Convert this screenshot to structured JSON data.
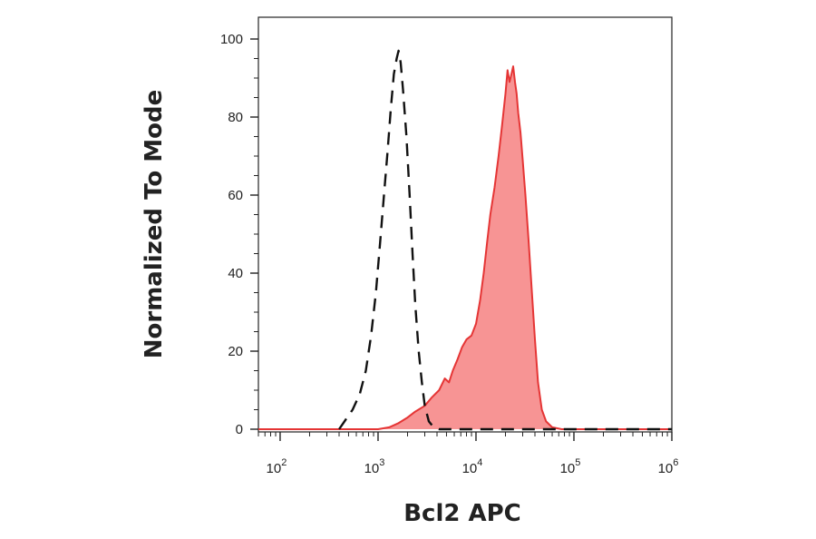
{
  "chart_data": {
    "type": "area",
    "xlabel": "Bcl2 APC",
    "ylabel": "Normalized To Mode",
    "x_scale": "log",
    "xlim": [
      60,
      1000000
    ],
    "ylim": [
      0,
      105
    ],
    "grid": false,
    "legend": "none",
    "x_ticks": [
      {
        "value": 100,
        "base": "10",
        "exp": "2"
      },
      {
        "value": 1000,
        "base": "10",
        "exp": "3"
      },
      {
        "value": 10000,
        "base": "10",
        "exp": "4"
      },
      {
        "value": 100000,
        "base": "10",
        "exp": "5"
      },
      {
        "value": 1000000,
        "base": "10",
        "exp": "6"
      }
    ],
    "y_ticks": [
      {
        "value": 0,
        "label": "0"
      },
      {
        "value": 20,
        "label": "20"
      },
      {
        "value": 40,
        "label": "40"
      },
      {
        "value": 60,
        "label": "60"
      },
      {
        "value": 80,
        "label": "80"
      },
      {
        "value": 100,
        "label": "100"
      }
    ],
    "series": [
      {
        "style": "filled",
        "color": "#e53535",
        "fill": "#f79494",
        "points": [
          [
            60,
            0
          ],
          [
            1000,
            0
          ],
          [
            1300,
            0.5
          ],
          [
            1600,
            1.5
          ],
          [
            2000,
            3
          ],
          [
            2400,
            4.5
          ],
          [
            3000,
            6
          ],
          [
            3500,
            8
          ],
          [
            4200,
            10
          ],
          [
            4800,
            13
          ],
          [
            5300,
            12
          ],
          [
            5800,
            15
          ],
          [
            6500,
            18
          ],
          [
            7200,
            21
          ],
          [
            8000,
            23
          ],
          [
            9000,
            24
          ],
          [
            10000,
            27
          ],
          [
            11000,
            33
          ],
          [
            12000,
            40
          ],
          [
            13000,
            48
          ],
          [
            14000,
            55
          ],
          [
            15500,
            62
          ],
          [
            17000,
            70
          ],
          [
            18500,
            78
          ],
          [
            20000,
            86
          ],
          [
            21000,
            92
          ],
          [
            22000,
            89
          ],
          [
            23000,
            91
          ],
          [
            24000,
            93
          ],
          [
            25000,
            89
          ],
          [
            26000,
            86
          ],
          [
            27000,
            81
          ],
          [
            28500,
            76
          ],
          [
            30000,
            69
          ],
          [
            32000,
            60
          ],
          [
            34500,
            48
          ],
          [
            37000,
            36
          ],
          [
            40000,
            23
          ],
          [
            43000,
            12
          ],
          [
            47000,
            5
          ],
          [
            52000,
            2
          ],
          [
            60000,
            0.5
          ],
          [
            75000,
            0
          ],
          [
            1000000,
            0
          ]
        ]
      },
      {
        "style": "dashed",
        "color": "#111111",
        "fill": "none",
        "points": [
          [
            400,
            0
          ],
          [
            550,
            5
          ],
          [
            650,
            9
          ],
          [
            750,
            15
          ],
          [
            850,
            24
          ],
          [
            950,
            35
          ],
          [
            1050,
            48
          ],
          [
            1150,
            60
          ],
          [
            1250,
            71
          ],
          [
            1350,
            82
          ],
          [
            1450,
            91
          ],
          [
            1550,
            95
          ],
          [
            1620,
            97
          ],
          [
            1700,
            94
          ],
          [
            1800,
            87
          ],
          [
            1950,
            75
          ],
          [
            2100,
            60
          ],
          [
            2250,
            45
          ],
          [
            2400,
            32
          ],
          [
            2600,
            20
          ],
          [
            2800,
            12
          ],
          [
            3000,
            6
          ],
          [
            3300,
            2
          ],
          [
            3700,
            0.5
          ],
          [
            4200,
            0
          ],
          [
            1000000,
            0
          ]
        ]
      }
    ]
  }
}
